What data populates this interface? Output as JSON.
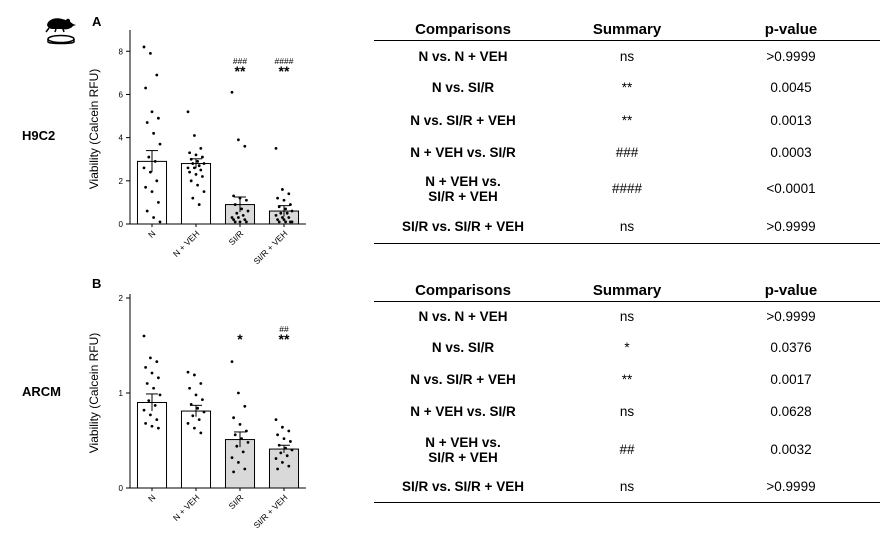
{
  "panels": [
    {
      "letter": "A",
      "row_label": "H9C2",
      "table": {
        "headers": [
          "Comparisons",
          "Summary",
          "p-value"
        ],
        "rows": [
          {
            "comparison": "N vs. N + VEH",
            "summary": "ns",
            "p": ">0.9999"
          },
          {
            "comparison": "N vs. SI/R",
            "summary": "**",
            "p": "0.0045"
          },
          {
            "comparison": "N vs. SI/R + VEH",
            "summary": "**",
            "p": "0.0013"
          },
          {
            "comparison": "N + VEH vs. SI/R",
            "summary": "###",
            "p": "0.0003"
          },
          {
            "comparison": "N + VEH vs. SI/R + VEH",
            "summary": "####",
            "p": "<0.0001"
          },
          {
            "comparison": "SI/R vs. SI/R + VEH",
            "summary": "ns",
            "p": ">0.9999"
          }
        ]
      }
    },
    {
      "letter": "B",
      "row_label": "ARCM",
      "table": {
        "headers": [
          "Comparisons",
          "Summary",
          "p-value"
        ],
        "rows": [
          {
            "comparison": "N vs. N + VEH",
            "summary": "ns",
            "p": ">0.9999"
          },
          {
            "comparison": "N vs. SI/R",
            "summary": "*",
            "p": "0.0376"
          },
          {
            "comparison": "N vs. SI/R + VEH",
            "summary": "**",
            "p": "0.0017"
          },
          {
            "comparison": "N + VEH vs. SI/R",
            "summary": "ns",
            "p": "0.0628"
          },
          {
            "comparison": "N + VEH vs. SI/R + VEH",
            "summary": "##",
            "p": "0.0032"
          },
          {
            "comparison": "SI/R vs. SI/R + VEH",
            "summary": "ns",
            "p": ">0.9999"
          }
        ]
      }
    }
  ],
  "icon": "rat-with-petri-dish-icon",
  "colors": {
    "white_bar": "#ffffff",
    "grey_bar": "#d9d9d9",
    "stroke": "#000000"
  },
  "chart_data": [
    {
      "type": "bar",
      "panel": "A",
      "title": "",
      "xlabel": "",
      "ylabel": "Viability (Calcein RFU)",
      "ylim": [
        0,
        8.8
      ],
      "yticks": [
        "0",
        "2",
        "4",
        "6",
        "8"
      ],
      "categories": [
        "N",
        "N + VEH",
        "SI/R",
        "SI/R + VEH"
      ],
      "values": [
        2.9,
        2.8,
        0.9,
        0.6
      ],
      "sem": [
        0.5,
        0.22,
        0.35,
        0.25
      ],
      "fill": [
        "white",
        "white",
        "grey",
        "grey"
      ],
      "annotations": [
        {
          "category": "SI/R",
          "hash": "###",
          "star": "**"
        },
        {
          "category": "SI/R + VEH",
          "hash": "####",
          "star": "**"
        }
      ],
      "points": [
        [
          8.2,
          7.9,
          6.9,
          6.3,
          5.2,
          4.9,
          4.7,
          4.2,
          3.7,
          3.1,
          2.9,
          2.6,
          2.4,
          2.0,
          1.7,
          1.5,
          1.0,
          0.6,
          0.3,
          0.1
        ],
        [
          5.2,
          4.1,
          3.5,
          3.3,
          3.2,
          3.1,
          3.0,
          2.9,
          2.8,
          2.8,
          2.7,
          2.6,
          2.6,
          2.5,
          2.4,
          2.3,
          2.2,
          2.0,
          1.8,
          1.5,
          1.2,
          0.9
        ],
        [
          6.1,
          3.9,
          3.6,
          1.3,
          1.2,
          1.1,
          0.9,
          0.7,
          0.6,
          0.5,
          0.4,
          0.3,
          0.3,
          0.2,
          0.2,
          0.1,
          0.1,
          0.1
        ],
        [
          3.5,
          1.6,
          1.4,
          1.2,
          1.1,
          0.9,
          0.8,
          0.7,
          0.6,
          0.5,
          0.5,
          0.4,
          0.3,
          0.3,
          0.2,
          0.2,
          0.1,
          0.1,
          0.1,
          0.1
        ]
      ]
    },
    {
      "type": "bar",
      "panel": "B",
      "title": "",
      "xlabel": "",
      "ylabel": "Viability (Calcein RFU)",
      "ylim": [
        0,
        2
      ],
      "yticks": [
        "0",
        "1",
        "2"
      ],
      "categories": [
        "N",
        "N + VEH",
        "SI/R",
        "SI/R + VEH"
      ],
      "values": [
        0.9,
        0.81,
        0.51,
        0.41
      ],
      "sem": [
        0.09,
        0.06,
        0.08,
        0.04
      ],
      "fill": [
        "white",
        "white",
        "grey",
        "grey"
      ],
      "annotations": [
        {
          "category": "SI/R",
          "hash": "",
          "star": "*"
        },
        {
          "category": "SI/R + VEH",
          "hash": "##",
          "star": "**"
        }
      ],
      "points": [
        [
          1.6,
          1.37,
          1.33,
          1.27,
          1.21,
          1.16,
          1.1,
          1.05,
          0.98,
          0.92,
          0.87,
          0.82,
          0.77,
          0.72,
          0.68,
          0.65,
          0.63
        ],
        [
          1.22,
          1.19,
          1.1,
          1.05,
          0.98,
          0.93,
          0.88,
          0.84,
          0.8,
          0.76,
          0.72,
          0.68,
          0.63,
          0.58
        ],
        [
          1.33,
          1.0,
          0.86,
          0.74,
          0.67,
          0.6,
          0.56,
          0.52,
          0.48,
          0.44,
          0.38,
          0.32,
          0.27,
          0.2,
          0.17
        ],
        [
          0.72,
          0.64,
          0.6,
          0.56,
          0.52,
          0.49,
          0.45,
          0.42,
          0.4,
          0.37,
          0.34,
          0.31,
          0.27,
          0.23,
          0.2
        ]
      ]
    }
  ]
}
